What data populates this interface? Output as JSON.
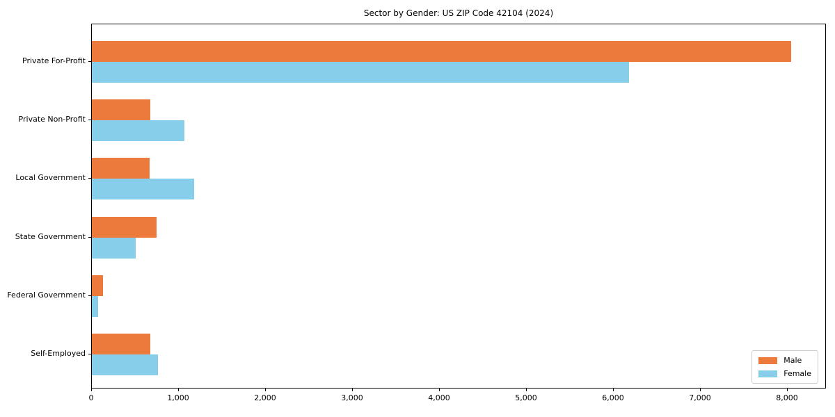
{
  "chart_data": {
    "type": "bar",
    "orientation": "horizontal",
    "title": "Sector by Gender: US ZIP Code 42104 (2024)",
    "categories": [
      "Private For-Profit",
      "Private Non-Profit",
      "Local Government",
      "State Government",
      "Federal Government",
      "Self-Employed"
    ],
    "series": [
      {
        "name": "Male",
        "color": "#ec7a3c",
        "values": [
          8040,
          675,
          665,
          740,
          125,
          675
        ]
      },
      {
        "name": "Female",
        "color": "#87ceeb",
        "values": [
          6175,
          1060,
          1175,
          505,
          70,
          760
        ]
      }
    ],
    "xlabel": "",
    "ylabel": "",
    "xlim": [
      0,
      8448
    ],
    "xticks": [
      0,
      1000,
      2000,
      3000,
      4000,
      5000,
      6000,
      7000,
      8000
    ],
    "xtick_labels": [
      "0",
      "1,000",
      "2,000",
      "3,000",
      "4,000",
      "5,000",
      "6,000",
      "7,000",
      "8,000"
    ],
    "grid": false,
    "legend": {
      "position": "lower right"
    }
  }
}
